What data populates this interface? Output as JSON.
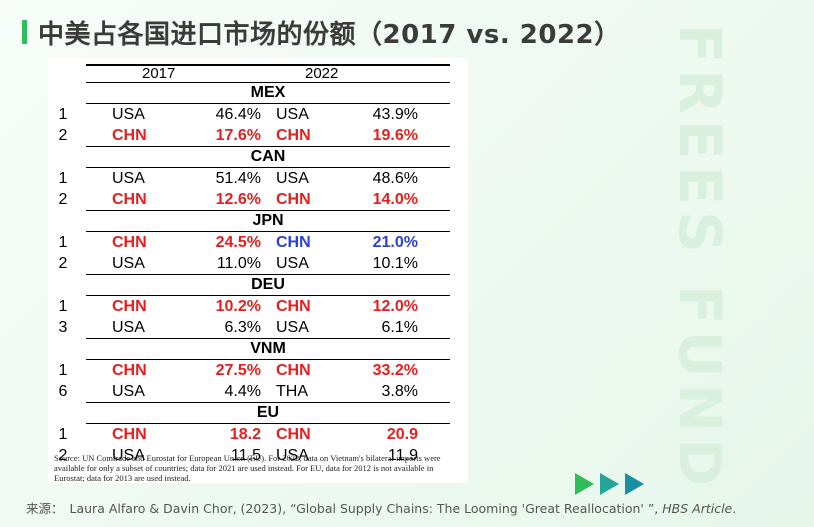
{
  "title": "中美占各国进口市场的份额（2017 vs. 2022）",
  "watermark": "FREES FUND",
  "table": {
    "col_2017": "2017",
    "col_2022": "2022",
    "sections": [
      {
        "name": "MEX",
        "rows": [
          {
            "rank": "1",
            "c2017": "USA",
            "v2017": "46.4%",
            "c2022": "USA",
            "v2022": "43.9%"
          },
          {
            "rank": "2",
            "c2017": "CHN",
            "v2017": "17.6%",
            "c2022": "CHN",
            "v2022": "19.6%"
          }
        ]
      },
      {
        "name": "CAN",
        "rows": [
          {
            "rank": "1",
            "c2017": "USA",
            "v2017": "51.4%",
            "c2022": "USA",
            "v2022": "48.6%"
          },
          {
            "rank": "2",
            "c2017": "CHN",
            "v2017": "12.6%",
            "c2022": "CHN",
            "v2022": "14.0%"
          }
        ]
      },
      {
        "name": "JPN",
        "rows": [
          {
            "rank": "1",
            "c2017": "CHN",
            "v2017": "24.5%",
            "c2022": "CHN",
            "v2022": "21.0%"
          },
          {
            "rank": "2",
            "c2017": "USA",
            "v2017": "11.0%",
            "c2022": "USA",
            "v2022": "10.1%"
          }
        ]
      },
      {
        "name": "DEU",
        "rows": [
          {
            "rank": "1",
            "c2017": "CHN",
            "v2017": "10.2%",
            "c2022": "CHN",
            "v2022": "12.0%"
          },
          {
            "rank": "3",
            "c2017": "USA",
            "v2017": "6.3%",
            "c2022": "USA",
            "v2022": "6.1%"
          }
        ]
      },
      {
        "name": "VNM",
        "rows": [
          {
            "rank": "1",
            "c2017": "CHN",
            "v2017": "27.5%",
            "c2022": "CHN",
            "v2022": "33.2%"
          },
          {
            "rank": "6",
            "c2017": "USA",
            "v2017": "4.4%",
            "c2022": "THA",
            "v2022": "3.8%"
          }
        ]
      },
      {
        "name": "EU",
        "rows": [
          {
            "rank": "1",
            "c2017": "CHN",
            "v2017": "18.2",
            "c2022": "CHN",
            "v2022": "20.9"
          },
          {
            "rank": "2",
            "c2017": "USA",
            "v2017": "11.5",
            "c2022": "USA",
            "v2022": "11.9"
          }
        ]
      }
    ],
    "source_note": "Source: UN Comtrade and Eurostat for European Union (EU). For 2022, data on Vietnam's bilateral imports were available for only a subset of countries; data for 2021 are used instead. For EU, data for 2012 is not available in Eurostat; data for 2013 are used instead."
  },
  "colors": {
    "china": "#e81e1e",
    "china_2022_jpn": "#2a41d6",
    "accent": "#2ebd59"
  },
  "footer": {
    "label": "来源：",
    "citation": "Laura Alfaro & Davin Chor, (2023), “Global Supply Chains: The Looming 'Great Reallocation' ”, ",
    "journal": "HBS Article",
    "end": "."
  }
}
